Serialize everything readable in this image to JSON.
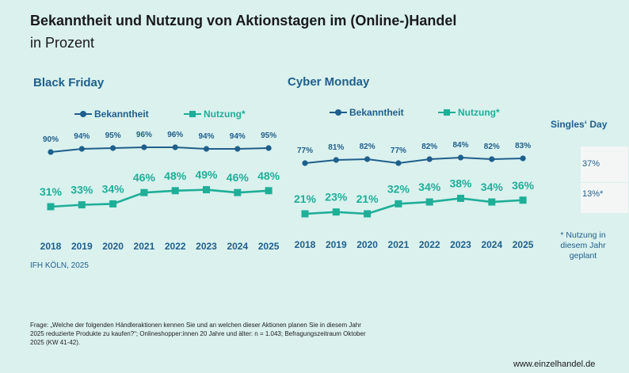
{
  "title": "Bekanntheit und Nutzung von Aktionstagen im (Online-)Handel",
  "subtitle": "in Prozent",
  "legend": {
    "awareness": "Bekanntheit",
    "usage": "Nutzung*"
  },
  "colors": {
    "awareness": "#1f5f8b",
    "usage": "#1fae98"
  },
  "chart_data": [
    {
      "type": "line",
      "title": "Black Friday",
      "x": [
        "2018",
        "2019",
        "2020",
        "2021",
        "2022",
        "2023",
        "2024",
        "2025"
      ],
      "series": [
        {
          "name": "Bekanntheit",
          "values": [
            90,
            94,
            95,
            96,
            96,
            94,
            94,
            95
          ],
          "labels": [
            "90%",
            "94%",
            "95%",
            "96%",
            "96%",
            "94%",
            "94%",
            "95%"
          ]
        },
        {
          "name": "Nutzung*",
          "values": [
            31,
            33,
            34,
            46,
            48,
            49,
            46,
            48
          ],
          "labels": [
            "31%",
            "33%",
            "34%",
            "46%",
            "48%",
            "49%",
            "46%",
            "48%"
          ]
        }
      ]
    },
    {
      "type": "line",
      "title": "Cyber Monday",
      "x": [
        "2018",
        "2019",
        "2020",
        "2021",
        "2022",
        "2023",
        "2024",
        "2025"
      ],
      "series": [
        {
          "name": "Bekanntheit",
          "values": [
            77,
            81,
            82,
            77,
            82,
            84,
            82,
            83
          ],
          "labels": [
            "77%",
            "81%",
            "82%",
            "77%",
            "82%",
            "84%",
            "82%",
            "83%"
          ]
        },
        {
          "name": "Nutzung*",
          "values": [
            21,
            23,
            21,
            32,
            34,
            38,
            34,
            36
          ],
          "labels": [
            "21%",
            "23%",
            "21%",
            "32%",
            "34%",
            "38%",
            "34%",
            "36%"
          ]
        }
      ]
    }
  ],
  "singles": {
    "title": "Singles‘ Day",
    "awareness": "37%",
    "usage": "13%",
    "usage_mark": "*",
    "note": "* Nutzung in diesem Jahr geplant"
  },
  "source": "IFH KÖLN, 2025",
  "footnote": "Frage: „Welche der folgenden Händleraktionen kennen Sie und an welchen dieser Aktionen planen Sie in diesem Jahr 2025 reduzierte Produkte zu kaufen?“; Onlineshopper:innen 20 Jahre und älter: n = 1.043; Befragungszeitraum Oktober 2025 (KW 41-42).",
  "website": "www.einzelhandel.de"
}
